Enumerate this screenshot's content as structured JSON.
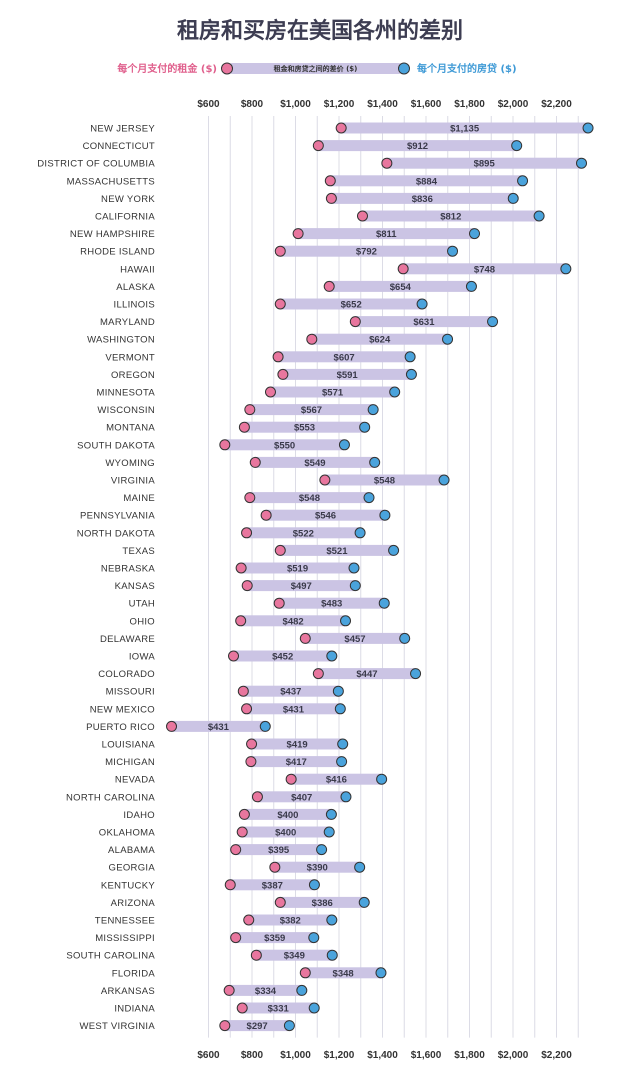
{
  "chart_data": {
    "type": "dumbbell",
    "title": "租房和买房在美国各州的差别",
    "legend": {
      "rent_label": "每个月支付的租金 ($)",
      "mortgage_label": "每个月支付的房贷 ($)",
      "diff_label": "租金和房贷之间的差价 ($)"
    },
    "colors": {
      "rent": "#e8769e",
      "mortgage": "#4aa3dc",
      "bar": "#cbc4e4",
      "rent_text": "#e0608d",
      "mortgage_text": "#3f9ad6"
    },
    "x_ticks": [
      "$600",
      "$800",
      "$1,000",
      "$1,200",
      "$1,400",
      "$1,600",
      "$1,800",
      "$2,000",
      "$2,200"
    ],
    "xlim": [
      400,
      2400
    ],
    "rows": [
      {
        "state": "NEW JERSEY",
        "rent": 1210,
        "mortgage": 2345,
        "diff": "$1,135"
      },
      {
        "state": "CONNECTICUT",
        "rent": 1105,
        "mortgage": 2017,
        "diff": "$912"
      },
      {
        "state": "DISTRICT OF COLUMBIA",
        "rent": 1420,
        "mortgage": 2315,
        "diff": "$895"
      },
      {
        "state": "MASSACHUSETTS",
        "rent": 1160,
        "mortgage": 2044,
        "diff": "$884"
      },
      {
        "state": "NEW YORK",
        "rent": 1165,
        "mortgage": 2001,
        "diff": "$836"
      },
      {
        "state": "CALIFORNIA",
        "rent": 1308,
        "mortgage": 2120,
        "diff": "$812"
      },
      {
        "state": "NEW HAMPSHIRE",
        "rent": 1012,
        "mortgage": 1823,
        "diff": "$811"
      },
      {
        "state": "RHODE ISLAND",
        "rent": 930,
        "mortgage": 1722,
        "diff": "$792"
      },
      {
        "state": "HAWAII",
        "rent": 1495,
        "mortgage": 2243,
        "diff": "$748"
      },
      {
        "state": "ALASKA",
        "rent": 1155,
        "mortgage": 1809,
        "diff": "$654"
      },
      {
        "state": "ILLINOIS",
        "rent": 930,
        "mortgage": 1582,
        "diff": "$652"
      },
      {
        "state": "MARYLAND",
        "rent": 1275,
        "mortgage": 1906,
        "diff": "$631"
      },
      {
        "state": "WASHINGTON",
        "rent": 1075,
        "mortgage": 1699,
        "diff": "$624"
      },
      {
        "state": "VERMONT",
        "rent": 920,
        "mortgage": 1527,
        "diff": "$607"
      },
      {
        "state": "OREGON",
        "rent": 942,
        "mortgage": 1533,
        "diff": "$591"
      },
      {
        "state": "MINNESOTA",
        "rent": 885,
        "mortgage": 1456,
        "diff": "$571"
      },
      {
        "state": "WISCONSIN",
        "rent": 790,
        "mortgage": 1357,
        "diff": "$567"
      },
      {
        "state": "MONTANA",
        "rent": 765,
        "mortgage": 1318,
        "diff": "$553"
      },
      {
        "state": "SOUTH DAKOTA",
        "rent": 675,
        "mortgage": 1225,
        "diff": "$550"
      },
      {
        "state": "WYOMING",
        "rent": 815,
        "mortgage": 1364,
        "diff": "$549"
      },
      {
        "state": "VIRGINIA",
        "rent": 1135,
        "mortgage": 1683,
        "diff": "$548"
      },
      {
        "state": "MAINE",
        "rent": 790,
        "mortgage": 1338,
        "diff": "$548"
      },
      {
        "state": "PENNSYLVANIA",
        "rent": 865,
        "mortgage": 1411,
        "diff": "$546"
      },
      {
        "state": "NORTH DAKOTA",
        "rent": 775,
        "mortgage": 1297,
        "diff": "$522"
      },
      {
        "state": "TEXAS",
        "rent": 930,
        "mortgage": 1451,
        "diff": "$521"
      },
      {
        "state": "NEBRASKA",
        "rent": 750,
        "mortgage": 1269,
        "diff": "$519"
      },
      {
        "state": "KANSAS",
        "rent": 778,
        "mortgage": 1275,
        "diff": "$497"
      },
      {
        "state": "UTAH",
        "rent": 925,
        "mortgage": 1408,
        "diff": "$483"
      },
      {
        "state": "OHIO",
        "rent": 748,
        "mortgage": 1230,
        "diff": "$482"
      },
      {
        "state": "DELAWARE",
        "rent": 1045,
        "mortgage": 1502,
        "diff": "$457"
      },
      {
        "state": "IOWA",
        "rent": 715,
        "mortgage": 1167,
        "diff": "$452"
      },
      {
        "state": "COLORADO",
        "rent": 1105,
        "mortgage": 1552,
        "diff": "$447"
      },
      {
        "state": "MISSOURI",
        "rent": 760,
        "mortgage": 1197,
        "diff": "$437"
      },
      {
        "state": "NEW MEXICO",
        "rent": 775,
        "mortgage": 1206,
        "diff": "$431"
      },
      {
        "state": "PUERTO RICO",
        "rent": 430,
        "mortgage": 861,
        "diff": "$431"
      },
      {
        "state": "LOUISIANA",
        "rent": 798,
        "mortgage": 1217,
        "diff": "$419"
      },
      {
        "state": "MICHIGAN",
        "rent": 795,
        "mortgage": 1212,
        "diff": "$417"
      },
      {
        "state": "NEVADA",
        "rent": 980,
        "mortgage": 1396,
        "diff": "$416"
      },
      {
        "state": "NORTH CAROLINA",
        "rent": 825,
        "mortgage": 1232,
        "diff": "$407"
      },
      {
        "state": "IDAHO",
        "rent": 765,
        "mortgage": 1165,
        "diff": "$400"
      },
      {
        "state": "OKLAHOMA",
        "rent": 755,
        "mortgage": 1155,
        "diff": "$400"
      },
      {
        "state": "ALABAMA",
        "rent": 725,
        "mortgage": 1120,
        "diff": "$395"
      },
      {
        "state": "GEORGIA",
        "rent": 905,
        "mortgage": 1295,
        "diff": "$390"
      },
      {
        "state": "KENTUCKY",
        "rent": 700,
        "mortgage": 1087,
        "diff": "$387"
      },
      {
        "state": "ARIZONA",
        "rent": 930,
        "mortgage": 1316,
        "diff": "$386"
      },
      {
        "state": "TENNESSEE",
        "rent": 785,
        "mortgage": 1167,
        "diff": "$382"
      },
      {
        "state": "MISSISSIPPI",
        "rent": 725,
        "mortgage": 1084,
        "diff": "$359"
      },
      {
        "state": "SOUTH CAROLINA",
        "rent": 820,
        "mortgage": 1169,
        "diff": "$349"
      },
      {
        "state": "FLORIDA",
        "rent": 1045,
        "mortgage": 1393,
        "diff": "$348"
      },
      {
        "state": "ARKANSAS",
        "rent": 695,
        "mortgage": 1029,
        "diff": "$334"
      },
      {
        "state": "INDIANA",
        "rent": 755,
        "mortgage": 1086,
        "diff": "$331"
      },
      {
        "state": "WEST VIRGINIA",
        "rent": 675,
        "mortgage": 972,
        "diff": "$297"
      }
    ]
  }
}
